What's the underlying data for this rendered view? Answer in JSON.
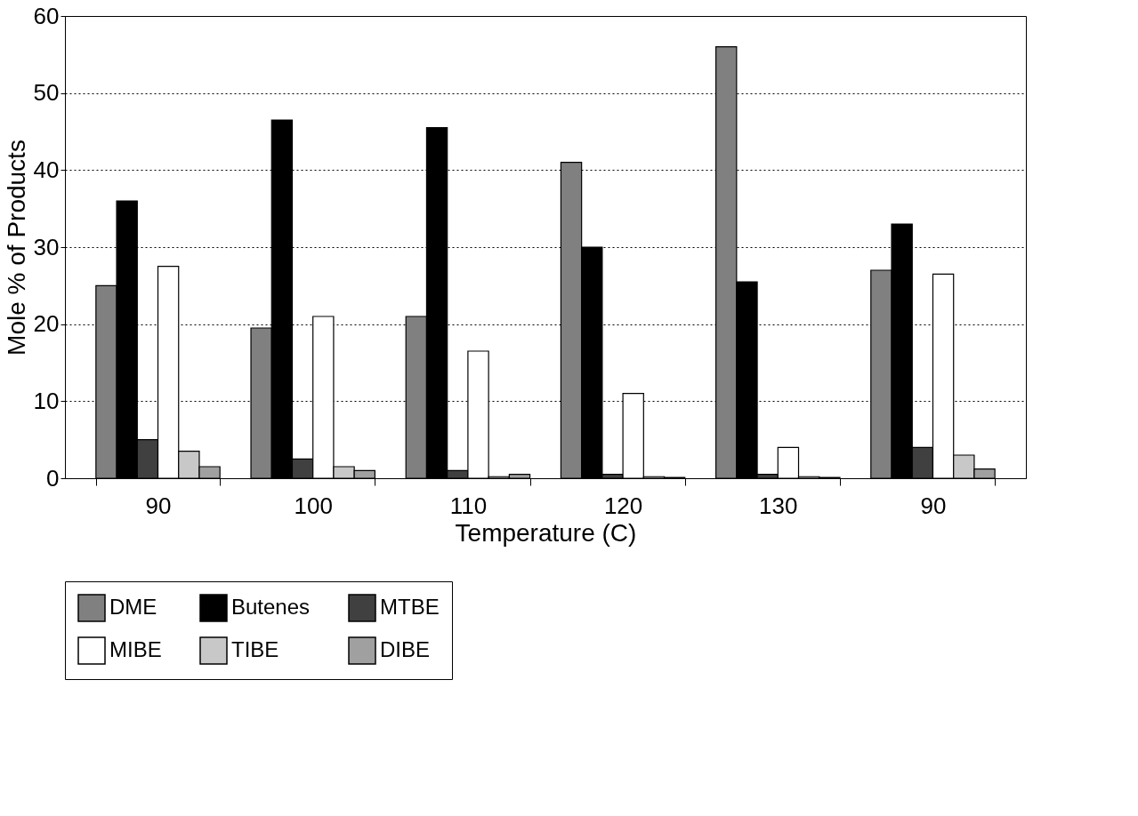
{
  "chart_data": {
    "type": "bar",
    "xlabel": "Temperature (C)",
    "ylabel": "Mole % of Products",
    "categories": [
      "90",
      "100",
      "110",
      "120",
      "130",
      "90"
    ],
    "series": [
      {
        "name": "DME",
        "color": "#808080",
        "values": [
          25,
          19.5,
          21,
          41,
          56,
          27
        ]
      },
      {
        "name": "Butenes",
        "color": "#000000",
        "values": [
          36,
          46.5,
          45.5,
          30,
          25.5,
          33
        ]
      },
      {
        "name": "MTBE",
        "color": "#404040",
        "values": [
          5,
          2.5,
          1,
          0.5,
          0.5,
          4
        ]
      },
      {
        "name": "MIBE",
        "color": "#ffffff",
        "values": [
          27.5,
          21,
          16.5,
          11,
          4,
          26.5
        ]
      },
      {
        "name": "TIBE",
        "color": "#c8c8c8",
        "values": [
          3.5,
          1.5,
          0.2,
          0.2,
          0.2,
          3
        ]
      },
      {
        "name": "DIBE",
        "color": "#a0a0a0",
        "values": [
          1.5,
          1,
          0.5,
          0.1,
          0.1,
          1.2
        ]
      }
    ],
    "ylim": [
      0,
      60
    ],
    "yticks": [
      0,
      10,
      20,
      30,
      40,
      50,
      60
    ],
    "grid": "y",
    "legend": "bottom"
  }
}
